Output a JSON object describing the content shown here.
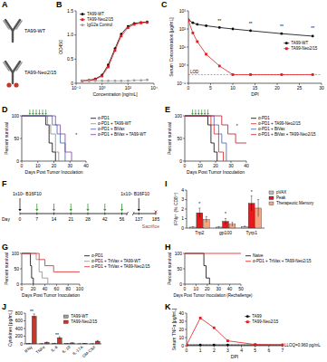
{
  "chart_data": [
    {
      "panel": "B",
      "type": "line",
      "xlabel": "Concentration [ng/mL]",
      "ylabel": "OD450",
      "log": "x",
      "xlim": [
        0.01,
        10000
      ],
      "xticks": [
        {
          "value": 0.01,
          "label": "10⁻²"
        },
        {
          "value": 1,
          "label": "10⁰"
        },
        {
          "value": 100,
          "label": "10²"
        },
        {
          "value": 10000,
          "label": "10⁴"
        }
      ],
      "ylim": [
        0,
        1.5
      ],
      "yticks": [
        0,
        0.5,
        {
          "value": 1,
          "label": "1.0"
        },
        1.5
      ],
      "legend": "top-left",
      "series": [
        {
          "name": "TA99-WT",
          "color": "#000000",
          "marker": "circle",
          "x": [
            0.03,
            0.1,
            0.3,
            1,
            3,
            10,
            30,
            100,
            300,
            1000,
            3000
          ],
          "values": [
            0.05,
            0.06,
            0.09,
            0.17,
            0.38,
            0.72,
            1.02,
            1.18,
            1.24,
            1.26,
            1.27
          ]
        },
        {
          "name": "TA99-Neo2/15",
          "color": "#e41a1c",
          "marker": "square",
          "x": [
            0.03,
            0.1,
            0.3,
            1,
            3,
            10,
            30,
            100,
            300,
            1000,
            3000
          ],
          "values": [
            0.05,
            0.06,
            0.08,
            0.15,
            0.34,
            0.68,
            0.98,
            1.15,
            1.22,
            1.25,
            1.26
          ]
        },
        {
          "name": "IgG2a Control",
          "color": "#9e9e9e",
          "marker": "circle",
          "x": [
            0.03,
            0.1,
            0.3,
            1,
            3,
            10,
            30,
            100,
            300,
            1000,
            3000
          ],
          "values": [
            0.05,
            0.05,
            0.05,
            0.05,
            0.05,
            0.05,
            0.05,
            0.05,
            0.06,
            0.06,
            0.07
          ]
        }
      ]
    },
    {
      "panel": "C",
      "type": "line",
      "xlabel": "DPI",
      "ylabel": "Serum Concentration [µg/mL]",
      "log": "y",
      "xlim": [
        0,
        30
      ],
      "xticks": [
        0,
        5,
        10,
        15,
        20,
        25,
        30
      ],
      "ylim": [
        0.1,
        1000
      ],
      "yticks": [
        {
          "value": 0.1,
          "label": "10⁻¹"
        },
        {
          "value": 1,
          "label": "10⁰"
        },
        {
          "value": 10,
          "label": "10¹"
        },
        {
          "value": 100,
          "label": "10²"
        },
        {
          "value": 1000,
          "label": "10³"
        }
      ],
      "legend": "center-right",
      "reference_line": {
        "value": 0.3,
        "label": "LOD"
      },
      "annotations": [
        {
          "text": "**",
          "x": 7,
          "y": 220
        },
        {
          "text": "**",
          "x": 14,
          "y": 160
        },
        {
          "text": "**",
          "x": 21,
          "y": 110
        },
        {
          "text": "**",
          "x": 28,
          "y": 85
        }
      ],
      "series": [
        {
          "name": "TA99-WT",
          "color": "#000000",
          "marker": "circle",
          "x": [
            0,
            1,
            2,
            4,
            7,
            10,
            14,
            21,
            28
          ],
          "values": [
            320,
            220,
            180,
            150,
            120,
            100,
            80,
            55,
            40
          ]
        },
        {
          "name": "TA99-Neo2/15",
          "color": "#e41a1c",
          "marker": "square",
          "x": [
            0,
            1,
            2,
            4,
            7,
            10,
            14,
            21,
            28
          ],
          "values": [
            300,
            60,
            20,
            4,
            0.9,
            0.3,
            0.3,
            0.3,
            0.3
          ]
        }
      ]
    },
    {
      "panel": "D",
      "type": "line",
      "line_style": "step",
      "xlabel": "Days Post Tumor Inoculation",
      "ylabel": "Percent survival",
      "xlim": [
        0,
        40
      ],
      "xticks": [
        0,
        10,
        20,
        30,
        40
      ],
      "ylim": [
        0,
        100
      ],
      "yticks": [
        0,
        50,
        100
      ],
      "legend": "right",
      "treatment_days": [
        5,
        7,
        9,
        11,
        13,
        15
      ],
      "annotations": [
        {
          "text": "*",
          "x": 34,
          "y": 55
        }
      ],
      "series": [
        {
          "name": "α-PD1",
          "color": "#000000",
          "x": [
            0,
            15,
            17,
            19,
            21
          ],
          "values": [
            100,
            80,
            40,
            20,
            0
          ]
        },
        {
          "name": "α-PD1 + TA99-WT",
          "color": "#8c8c8c",
          "x": [
            0,
            16,
            18,
            21,
            23
          ],
          "values": [
            100,
            80,
            60,
            20,
            0
          ]
        },
        {
          "name": "α-PD1 + BiVax",
          "color": "#3a66b0",
          "x": [
            0,
            19,
            22,
            24,
            27
          ],
          "values": [
            100,
            80,
            60,
            40,
            0
          ]
        },
        {
          "name": "α-PD1 + BiVax + TA99-WT",
          "color": "#7b3fa0",
          "x": [
            0,
            21,
            24,
            27,
            31
          ],
          "values": [
            100,
            80,
            60,
            20,
            0
          ]
        }
      ]
    },
    {
      "panel": "E",
      "type": "line",
      "line_style": "step",
      "xlabel": "Days Post Tumor Inoculation",
      "ylabel": "Percent survival",
      "xlim": [
        0,
        40
      ],
      "xticks": [
        0,
        10,
        20,
        30,
        40
      ],
      "ylim": [
        0,
        100
      ],
      "yticks": [
        0,
        50,
        100
      ],
      "legend": "right",
      "treatment_days": [
        5,
        7,
        9,
        11,
        13,
        15
      ],
      "annotations": [
        {
          "text": "*",
          "x": 34,
          "y": 75
        }
      ],
      "series": [
        {
          "name": "α-PD1",
          "color": "#000000",
          "x": [
            0,
            15,
            17,
            19,
            21
          ],
          "values": [
            100,
            80,
            40,
            20,
            0
          ]
        },
        {
          "name": "α-PD1 + TA99-Neo2/15",
          "color": "#e41a1c",
          "x": [
            0,
            17,
            19,
            22,
            25
          ],
          "values": [
            100,
            80,
            60,
            20,
            0
          ]
        },
        {
          "name": "α-PD1 + BiVax",
          "color": "#3a66b0",
          "x": [
            0,
            19,
            22,
            24,
            27
          ],
          "values": [
            100,
            80,
            60,
            40,
            0
          ]
        },
        {
          "name": "α-PD1 + BiVax + TA99-Neo2/15",
          "color": "#b2182b",
          "x": [
            0,
            24,
            28,
            33,
            40
          ],
          "values": [
            100,
            80,
            60,
            40,
            40
          ]
        }
      ]
    },
    {
      "panel": "G",
      "type": "line",
      "line_style": "step",
      "xlabel": "Days Post Tumor Inoculation",
      "ylabel": "Percent survival",
      "xlim": [
        0,
        100
      ],
      "xticks": [
        0,
        20,
        40,
        60,
        80,
        100
      ],
      "ylim": [
        0,
        100
      ],
      "yticks": [
        0,
        50,
        100
      ],
      "legend": "right",
      "series": [
        {
          "name": "α-PD1",
          "color": "#000000",
          "x": [
            0,
            15,
            17,
            20
          ],
          "values": [
            100,
            60,
            20,
            0
          ]
        },
        {
          "name": "α-PD1 + TriVax + TA99-WT",
          "color": "#8c8c8c",
          "x": [
            0,
            25,
            30,
            35,
            45
          ],
          "values": [
            100,
            80,
            40,
            20,
            0
          ]
        },
        {
          "name": "α-PD1 + TriVax + TA99-Neo2/15",
          "color": "#e41a1c",
          "x": [
            0,
            30,
            40,
            55,
            100
          ],
          "values": [
            100,
            80,
            60,
            40,
            40
          ]
        }
      ]
    },
    {
      "panel": "H",
      "type": "line",
      "line_style": "step",
      "xlabel": "Days Post Tumor Inoculation (Rechallenge)",
      "ylabel": "Percent survival",
      "xlim": [
        0,
        50
      ],
      "xticks": [
        0,
        10,
        20,
        30,
        40,
        50
      ],
      "ylim": [
        0,
        100
      ],
      "yticks": [
        0,
        50,
        100
      ],
      "legend": "right",
      "series": [
        {
          "name": "Naive",
          "color": "#000000",
          "x": [
            0,
            17,
            19,
            22
          ],
          "values": [
            100,
            60,
            20,
            0
          ]
        },
        {
          "name": "α-PD1 + TriVax + TA99-Neo2/15",
          "color": "#e41a1c",
          "x": [
            0,
            50
          ],
          "values": [
            100,
            100
          ]
        }
      ]
    },
    {
      "panel": "I",
      "type": "bar",
      "ylabel": "IFNγ⁺ (% CD8⁺)",
      "categories": [
        "Trp2",
        "gp100",
        "Tyrp1"
      ],
      "ylim": [
        0,
        4
      ],
      "yticks": [
        0,
        1,
        2,
        3,
        4
      ],
      "legend": "right",
      "annotations": [
        {
          "text": "*",
          "x": "Trp2",
          "y": 2.4
        },
        {
          "text": "*",
          "x": "gp100",
          "y": 1.3
        },
        {
          "text": "*",
          "x": "Tyrp1",
          "y": 3.6
        }
      ],
      "series": [
        {
          "name": "pVAX",
          "color": "#bdbdbd",
          "values": [
            0.1,
            0.1,
            0.15
          ],
          "errors": [
            0.05,
            0.05,
            0.05
          ]
        },
        {
          "name": "Peak",
          "color": "#e41a1c",
          "values": [
            1.6,
            0.7,
            2.6
          ],
          "errors": [
            0.5,
            0.3,
            0.8
          ]
        },
        {
          "name": "Therapeutic Memory",
          "color": "#f4a582",
          "values": [
            0.9,
            0.4,
            2.1
          ],
          "errors": [
            0.3,
            0.2,
            0.9
          ]
        }
      ]
    },
    {
      "panel": "J",
      "type": "bar",
      "ylabel": "Cytokines [pg/mL]",
      "categories": [
        "IFNγ",
        "TNFα",
        "IL-6",
        "IL-10",
        "IL-17A",
        "GM-CSF"
      ],
      "ylim": [
        0,
        800
      ],
      "yticks": [
        0,
        200,
        400,
        600,
        800
      ],
      "legend": "top-right",
      "annotations": [
        {
          "text": "**",
          "x": "IFNγ",
          "y": 790
        },
        {
          "text": "**",
          "x": "IL-6",
          "y": 200
        }
      ],
      "series": [
        {
          "name": "TA99-WT",
          "color": "#9e9e9e",
          "values": [
            8,
            3,
            12,
            4,
            2,
            2
          ],
          "errors": [
            3,
            1,
            4,
            2,
            1,
            1
          ]
        },
        {
          "name": "TA99-Neo2/15",
          "color": "#c0392b",
          "values": [
            720,
            40,
            160,
            25,
            6,
            70
          ],
          "errors": [
            60,
            10,
            30,
            8,
            3,
            20
          ]
        }
      ]
    },
    {
      "panel": "K",
      "type": "line",
      "xlabel": "DPI",
      "ylabel": "Serum TNFα [pg/mL]",
      "xlim": [
        0,
        7
      ],
      "xticks": [
        0,
        1,
        2,
        3,
        4,
        5,
        6,
        7
      ],
      "ylim": [
        0,
        40
      ],
      "yticks": [
        0,
        10,
        20,
        30,
        40
      ],
      "legend": "top-right",
      "reference_line": {
        "value": 0.96,
        "label": "LLOQ=0.960 pg/mL"
      },
      "series": [
        {
          "name": "TA99",
          "color": "#000000",
          "marker": "circle",
          "x": [
            0,
            1,
            2,
            3,
            5,
            7
          ],
          "values": [
            0.96,
            0.96,
            0.96,
            0.96,
            0.96,
            0.96
          ]
        },
        {
          "name": "TA99-Neo2/15",
          "color": "#e41a1c",
          "marker": "square",
          "x": [
            0,
            1,
            2,
            3,
            5,
            7
          ],
          "values": [
            0.96,
            34,
            22,
            6,
            1.5,
            0.96
          ]
        }
      ]
    }
  ],
  "schematic": {
    "panel": "A",
    "labels": [
      "TA99-WT",
      "TA99-Neo2/15"
    ]
  },
  "timeline": {
    "panel": "F",
    "axis_label": "Day",
    "days": [
      0,
      7,
      14,
      21,
      28,
      42,
      56,
      137,
      185
    ],
    "treatment_days": [
      7,
      14,
      21,
      28,
      42,
      56
    ],
    "inoculation": "1x10⁵ B16F10",
    "inoculation_day": 0,
    "rechallenge": "1x10⁵ B16F10",
    "rechallenge_day": 137,
    "endpoint": "Sacrifice",
    "endpoint_day": 185
  }
}
